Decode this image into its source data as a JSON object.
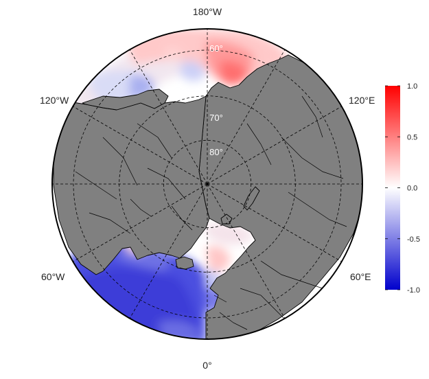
{
  "map": {
    "projection": "north-polar-stereographic",
    "center": "North Pole",
    "land_color": "#808080",
    "graticule_style": "dashed",
    "longitude_labels": [
      {
        "label": "180°W",
        "lon": 180
      },
      {
        "label": "120°E",
        "lon": 120
      },
      {
        "label": "60°E",
        "lon": 60
      },
      {
        "label": "0°",
        "lon": 0
      },
      {
        "label": "60°W",
        "lon": -60
      },
      {
        "label": "120°W",
        "lon": -120
      }
    ],
    "latitude_labels": [
      {
        "label": "60°",
        "lat": 60
      },
      {
        "label": "70°",
        "lat": 70
      },
      {
        "label": "80°",
        "lat": 80
      }
    ],
    "graticule_lats": [
      60,
      70,
      80
    ],
    "graticule_lons": [
      0,
      30,
      60,
      90,
      120,
      150,
      180,
      210,
      240,
      270,
      300,
      330
    ]
  },
  "colorbar": {
    "min": -1.0,
    "max": 1.0,
    "colors": [
      "#0000cc",
      "#ffffff",
      "#ff0000"
    ],
    "ticks": [
      {
        "value": 1.0,
        "label": "1.0"
      },
      {
        "value": 0.5,
        "label": "0.5"
      },
      {
        "value": 0.0,
        "label": "0.0"
      },
      {
        "value": -0.5,
        "label": "-0.5"
      },
      {
        "value": -1.0,
        "label": "-1.0"
      }
    ]
  }
}
